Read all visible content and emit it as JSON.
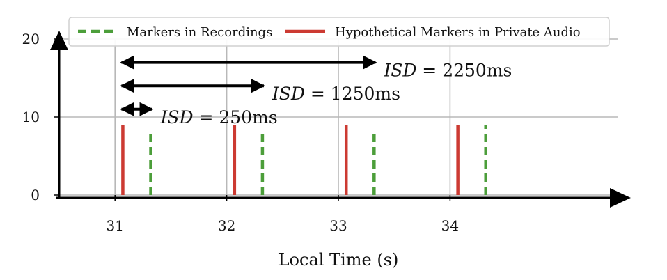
{
  "chart_data": {
    "type": "event-markers",
    "title": "",
    "xlabel": "Local Time (s)",
    "ylabel": "",
    "xlim": [
      30.5,
      35.5
    ],
    "ylim": [
      0,
      20
    ],
    "xticks": [
      "31",
      "32",
      "33",
      "34"
    ],
    "yticks": [
      "0",
      "10",
      "20"
    ],
    "grid": true,
    "legend_position": "top",
    "series": [
      {
        "name": "Markers in Recordings",
        "style": "dashed",
        "color": "#4c9e3a",
        "x": [
          31.32,
          32.32,
          33.32,
          34.32
        ],
        "height": [
          8,
          8,
          8,
          9
        ]
      },
      {
        "name": "Hypothetical Markers in Private Audio",
        "style": "solid",
        "color": "#cc3a32",
        "x": [
          31.07,
          32.07,
          33.07,
          34.07
        ],
        "height": [
          9,
          9,
          9,
          9
        ]
      }
    ],
    "annotations": [
      {
        "label_italic": "ISD",
        "label_rest": " = 250ms",
        "x_start": 31.07,
        "x_end": 31.32,
        "y": 11
      },
      {
        "label_italic": "ISD",
        "label_rest": " = 1250ms",
        "x_start": 31.07,
        "x_end": 32.32,
        "y": 14
      },
      {
        "label_italic": "ISD",
        "label_rest": " = 2250ms",
        "x_start": 31.07,
        "x_end": 33.32,
        "y": 17
      }
    ]
  }
}
